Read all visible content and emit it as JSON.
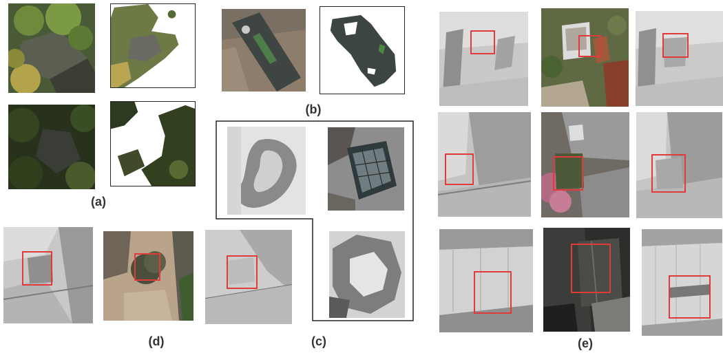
{
  "figure": {
    "panels": [
      {
        "id": "a",
        "caption": "(a)"
      },
      {
        "id": "b",
        "caption": "(b)"
      },
      {
        "id": "c",
        "caption": "(c)"
      },
      {
        "id": "d",
        "caption": "(d)"
      },
      {
        "id": "e",
        "caption": "(e)"
      }
    ]
  },
  "colors": {
    "highlight": "#e23a3a",
    "frame": "#222222",
    "caption": "#333333"
  }
}
